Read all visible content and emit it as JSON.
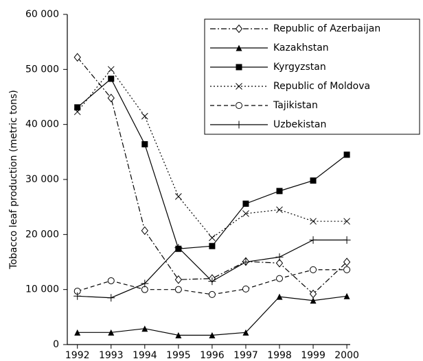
{
  "chart_data": {
    "type": "line",
    "y_label": "Tobacco leaf production (metric tons)",
    "x": [
      1992,
      1993,
      1994,
      1995,
      1996,
      1997,
      1998,
      1999,
      2000
    ],
    "xlim": [
      1991.7,
      2000.1
    ],
    "xticks": [
      1992,
      1993,
      1994,
      1995,
      1996,
      1997,
      1998,
      1999,
      2000
    ],
    "ylim": [
      0,
      60000
    ],
    "yticks": [
      0,
      {
        "value": 10000,
        "label": "10 000"
      },
      {
        "value": 20000,
        "label": "20 000"
      },
      {
        "value": 30000,
        "label": "30 000"
      },
      {
        "value": 40000,
        "label": "40 000"
      },
      {
        "value": 50000,
        "label": "50 000"
      },
      {
        "value": 60000,
        "label": "60 000"
      }
    ],
    "legend": "upper right",
    "series": [
      {
        "name": "Republic of Azerbaijan",
        "color": "#000000",
        "marker": "diamond-open",
        "dash": "dash-dot",
        "values": [
          52200,
          44800,
          20700,
          11800,
          12000,
          15100,
          14800,
          9200,
          15000
        ]
      },
      {
        "name": "Kazakhstan",
        "color": "#000000",
        "marker": "triangle",
        "dash": "solid",
        "values": [
          2200,
          2200,
          2900,
          1700,
          1700,
          2200,
          8700,
          8000,
          8800
        ]
      },
      {
        "name": "Kyrgyzstan",
        "color": "#000000",
        "marker": "square",
        "dash": "solid",
        "values": [
          43100,
          48300,
          36400,
          17400,
          17900,
          25600,
          27900,
          29800,
          34500
        ]
      },
      {
        "name": "Republic of Moldova",
        "color": "#000000",
        "marker": "x",
        "dash": "dotted",
        "values": [
          42300,
          50000,
          41500,
          26900,
          19400,
          23800,
          24500,
          22400,
          22400
        ]
      },
      {
        "name": "Tajikistan",
        "color": "#000000",
        "marker": "circle-open",
        "dash": "dashed",
        "values": [
          9700,
          11600,
          10000,
          10000,
          9100,
          10100,
          12000,
          13600,
          13600
        ]
      },
      {
        "name": "Uzbekistan",
        "color": "#000000",
        "marker": "plus",
        "dash": "solid",
        "values": [
          8800,
          8500,
          11100,
          17600,
          11500,
          15000,
          15900,
          19000,
          19000
        ]
      }
    ]
  }
}
